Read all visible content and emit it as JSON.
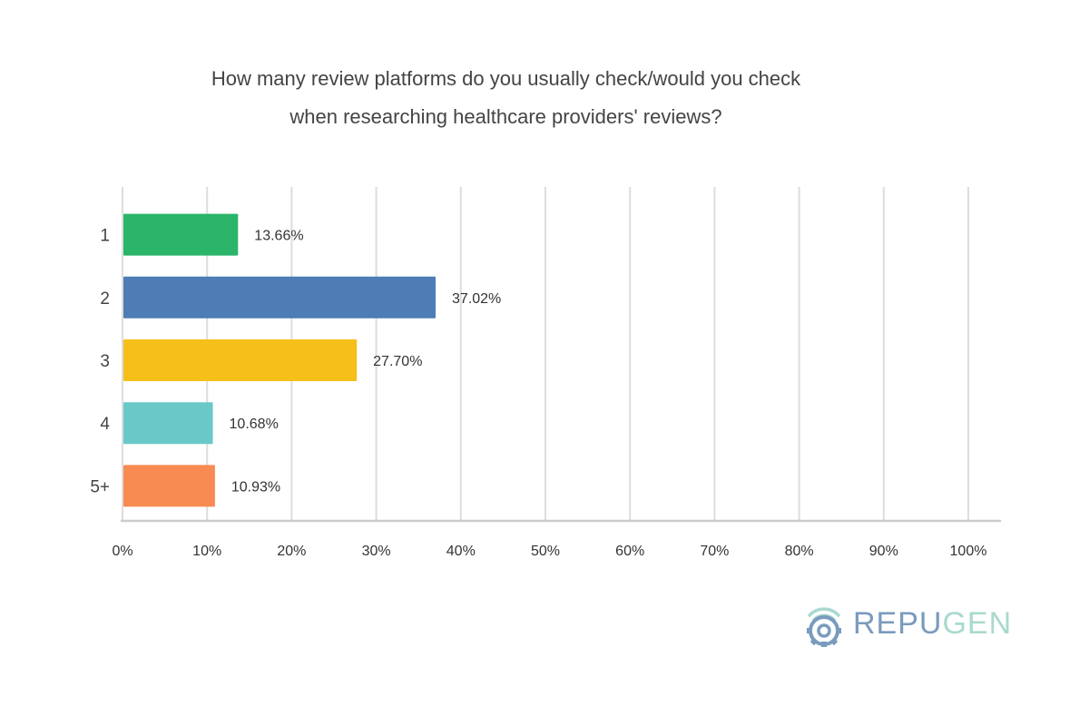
{
  "chart_data": {
    "type": "bar",
    "orientation": "horizontal",
    "title": "How many review platforms do you usually check/would you check when researching healthcare providers' reviews?",
    "title_lines": [
      "How many review platforms do you usually check/would you check",
      "when researching healthcare providers' reviews?"
    ],
    "categories": [
      "1",
      "2",
      "3",
      "4",
      "5+"
    ],
    "values": [
      13.66,
      37.02,
      27.7,
      10.68,
      10.93
    ],
    "value_labels": [
      "13.66%",
      "37.02%",
      "27.70%",
      "10.68%",
      "10.93%"
    ],
    "colors": [
      "#2ab56b",
      "#4e7db5",
      "#f6bf19",
      "#6ac8c8",
      "#f78b52"
    ],
    "xlim": [
      0,
      100
    ],
    "x_ticks": [
      0,
      10,
      20,
      30,
      40,
      50,
      60,
      70,
      80,
      90,
      100
    ],
    "x_tick_labels": [
      "0%",
      "10%",
      "20%",
      "30%",
      "40%",
      "50%",
      "60%",
      "70%",
      "80%",
      "90%",
      "100%"
    ],
    "grid": true,
    "legend": "none",
    "xlabel": "",
    "ylabel": ""
  },
  "logo": {
    "text_part1": "REPU",
    "text_part2": "GEN",
    "color_part1": "#7a9bbd",
    "color_part2": "#a9d9cf",
    "icon": "wifi-gear-icon"
  }
}
